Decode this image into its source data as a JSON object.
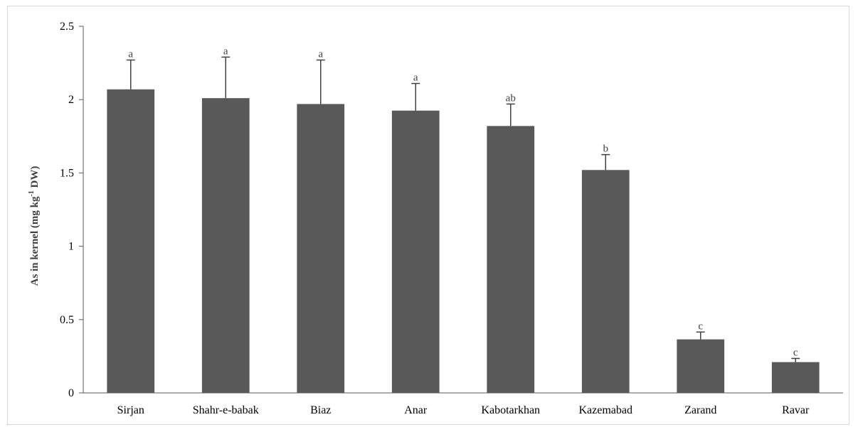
{
  "chart_data": {
    "type": "bar",
    "categories": [
      "Sirjan",
      "Shahr-e-babak",
      "Biaz",
      "Anar",
      "Kabotarkhan",
      "Kazemabad",
      "Zarand",
      "Ravar"
    ],
    "values": [
      2.07,
      2.01,
      1.97,
      1.925,
      1.82,
      1.52,
      0.365,
      0.21
    ],
    "errors": [
      0.2,
      0.28,
      0.3,
      0.185,
      0.15,
      0.105,
      0.05,
      0.025
    ],
    "significance_letters": [
      "a",
      "a",
      "a",
      "a",
      "ab",
      "b",
      "c",
      "c"
    ],
    "title": "",
    "xlabel": "",
    "ylabel": {
      "prefix": "As in kernel (mg kg",
      "superscript": "-1",
      "suffix": " DW)"
    },
    "ylim": [
      0,
      2.5
    ],
    "yticks": [
      "0",
      "0.5",
      "1",
      "1.5",
      "2",
      "2.5"
    ],
    "ytick_values": [
      0,
      0.5,
      1,
      1.5,
      2,
      2.5
    ],
    "grid": false,
    "legend": "none",
    "colors": {
      "bar": "#595959",
      "error_bar": "#404040",
      "axis": "#595959"
    }
  }
}
